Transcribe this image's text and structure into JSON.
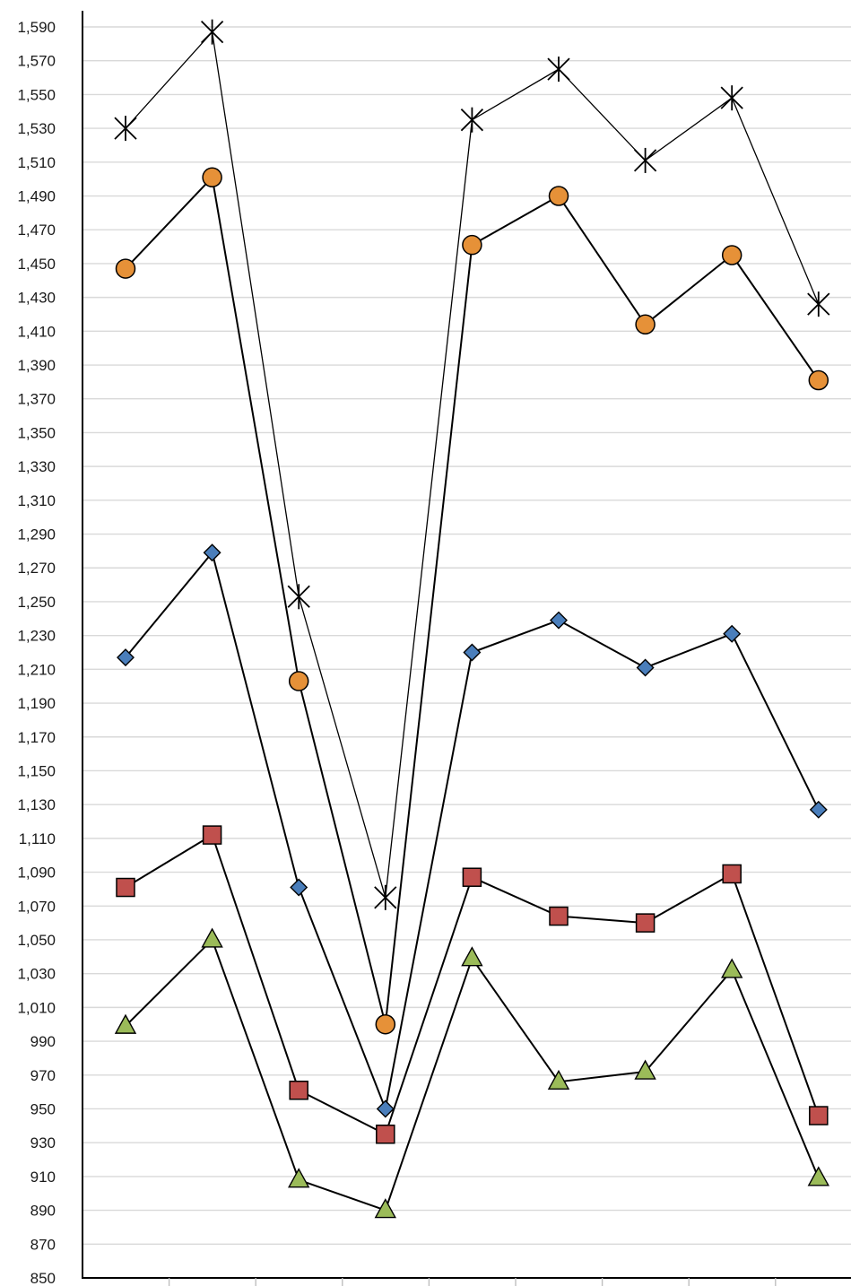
{
  "chart_data": {
    "type": "line",
    "title": "",
    "xlabel": "",
    "ylabel": "",
    "ylim": [
      850,
      1590
    ],
    "y_ticks": [
      850,
      870,
      890,
      910,
      930,
      950,
      970,
      990,
      1010,
      1030,
      1050,
      1070,
      1090,
      1110,
      1130,
      1150,
      1170,
      1190,
      1210,
      1230,
      1250,
      1270,
      1290,
      1310,
      1330,
      1350,
      1370,
      1390,
      1410,
      1430,
      1450,
      1470,
      1490,
      1510,
      1530,
      1550,
      1570,
      1590
    ],
    "y_tick_labels": [
      "850",
      "870",
      "890",
      "910",
      "930",
      "950",
      "970",
      "990",
      "1,010",
      "1,030",
      "1,050",
      "1,070",
      "1,090",
      "1,110",
      "1,130",
      "1,150",
      "1,170",
      "1,190",
      "1,210",
      "1,230",
      "1,250",
      "1,270",
      "1,290",
      "1,310",
      "1,330",
      "1,350",
      "1,370",
      "1,390",
      "1,410",
      "1,430",
      "1,450",
      "1,470",
      "1,490",
      "1,510",
      "1,530",
      "1,550",
      "1,570",
      "1,590"
    ],
    "grid": true,
    "legend": "none",
    "x_points": 9,
    "series": [
      {
        "marker": "star",
        "color": "#000000",
        "values": [
          1530,
          1587,
          1253,
          1075,
          1535,
          1565,
          1511,
          1548,
          1426
        ]
      },
      {
        "marker": "circle",
        "color": "#e69138",
        "values": [
          1447,
          1501,
          1203,
          1000,
          1461,
          1490,
          1414,
          1455,
          1381
        ]
      },
      {
        "marker": "diamond",
        "color": "#4a7ebb",
        "values": [
          1217,
          1279,
          1081,
          950,
          1220,
          1239,
          1211,
          1231,
          1127
        ]
      },
      {
        "marker": "square",
        "color": "#c0504d",
        "values": [
          1081,
          1112,
          961,
          935,
          1087,
          1064,
          1060,
          1089,
          946
        ]
      },
      {
        "marker": "triangle",
        "color": "#9bbb59",
        "values": [
          999,
          1050,
          908,
          890,
          1039,
          966,
          972,
          1032,
          909
        ]
      }
    ]
  }
}
